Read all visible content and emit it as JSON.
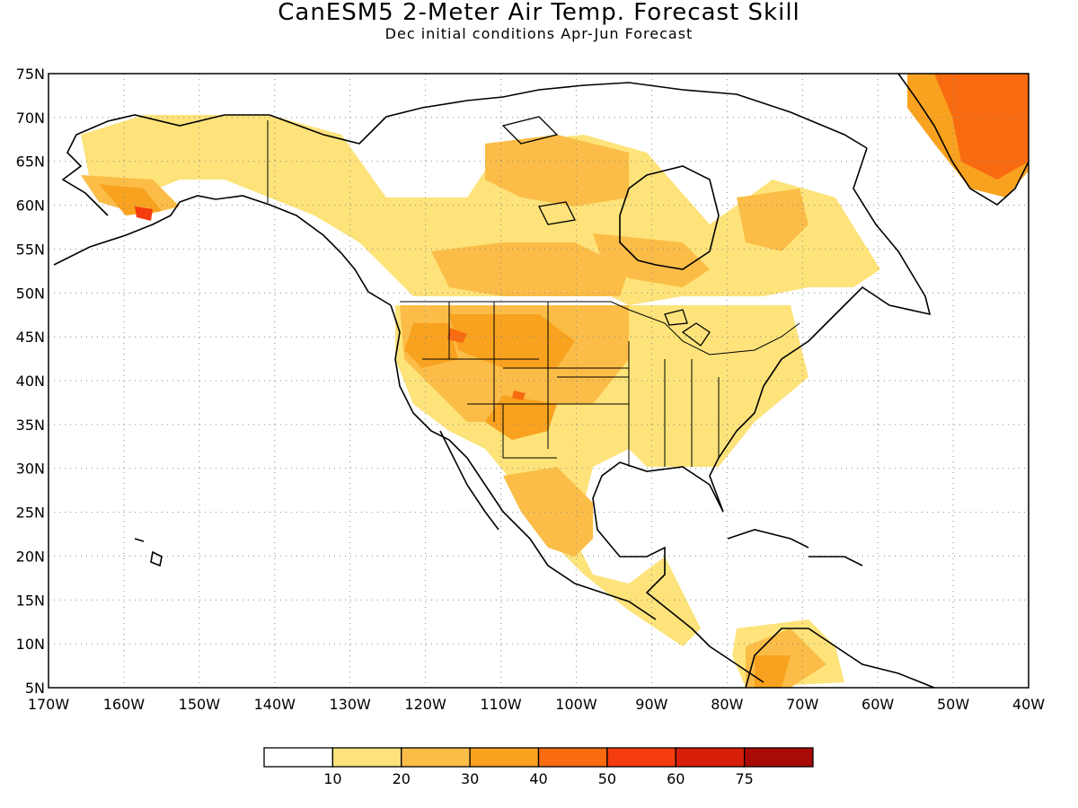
{
  "title": "CanESM5 2-Meter Air Temp. Forecast Skill",
  "subtitle": "Dec initial conditions  Apr-Jun Forecast",
  "map": {
    "region": "North America",
    "lat_ticks": [
      "75N",
      "70N",
      "65N",
      "60N",
      "55N",
      "50N",
      "45N",
      "40N",
      "35N",
      "30N",
      "25N",
      "20N",
      "15N",
      "10N",
      "5N"
    ],
    "lon_ticks": [
      "170W",
      "160W",
      "150W",
      "140W",
      "130W",
      "120W",
      "110W",
      "100W",
      "90W",
      "80W",
      "70W",
      "60W",
      "50W",
      "40W"
    ],
    "grid": "dotted"
  },
  "legend": {
    "colors": [
      "#ffffff",
      "#fde37a",
      "#fbbd47",
      "#f9a21f",
      "#f86b10",
      "#f53c0e",
      "#d81f0a",
      "#a80a05"
    ],
    "labels": [
      "10",
      "20",
      "30",
      "40",
      "50",
      "60",
      "75"
    ]
  }
}
